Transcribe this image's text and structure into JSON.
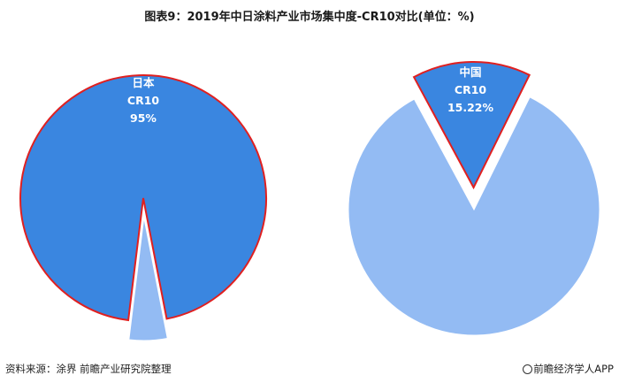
{
  "title": "图表9：2019年中日涂料产业市场集中度-CR10对比(单位：%)",
  "source": "资料来源：涂界 前瞻产业研究院整理",
  "brand": "前瞻经济学人APP",
  "colors": {
    "dark": "#3a86e0",
    "light": "#93bbf3",
    "outline": "#e02020",
    "label": "#ffffff"
  },
  "chart_data": [
    {
      "type": "pie",
      "name": "日本",
      "metric": "CR10",
      "highlight_label": "95%",
      "slices": [
        {
          "label": "日本 CR10",
          "value": 95,
          "color": "#3a86e0",
          "exploded": false
        },
        {
          "label": "",
          "value": 5,
          "color": "#93bbf3",
          "exploded": true
        }
      ]
    },
    {
      "type": "pie",
      "name": "中国",
      "metric": "CR10",
      "highlight_label": "15.22%",
      "slices": [
        {
          "label": "中国 CR10",
          "value": 15.22,
          "color": "#3a86e0",
          "exploded": true
        },
        {
          "label": "",
          "value": 84.78,
          "color": "#93bbf3",
          "exploded": false
        }
      ]
    }
  ]
}
